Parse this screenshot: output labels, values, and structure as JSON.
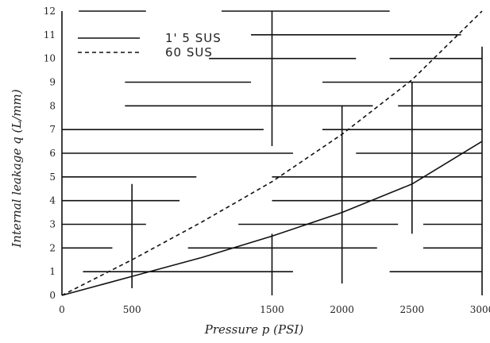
{
  "chart_data": {
    "type": "line",
    "title": "",
    "xlabel": "Pressure p (PSI)",
    "ylabel": "Internal leakage q (L/mm)",
    "xlim": [
      0,
      3000
    ],
    "ylim": [
      0,
      12
    ],
    "x_ticks": [
      0,
      500,
      1500,
      2000,
      2500,
      3000
    ],
    "x_tick_labels": [
      "0",
      "500",
      "1500",
      "2000",
      "2500",
      "3000"
    ],
    "y_ticks": [
      0,
      1,
      2,
      3,
      4,
      5,
      6,
      7,
      8,
      9,
      10,
      11,
      12
    ],
    "y_tick_labels": [
      "0",
      "1",
      "2",
      "3",
      "4",
      "5",
      "6",
      "7",
      "8",
      "9",
      "10",
      "11",
      "12"
    ],
    "grid": true,
    "legend_position": "top-left",
    "series": [
      {
        "name": "1' 5 SUS",
        "style": "solid",
        "x": [
          0,
          500,
          1000,
          1500,
          2000,
          2500,
          3000
        ],
        "y": [
          0,
          0.8,
          1.6,
          2.5,
          3.5,
          4.7,
          6.5
        ]
      },
      {
        "name": "60 SUS",
        "style": "dashed",
        "x": [
          0,
          500,
          1000,
          1500,
          2000,
          2500,
          3000
        ],
        "y": [
          0,
          1.5,
          3.1,
          4.8,
          6.8,
          9.1,
          12
        ]
      }
    ]
  }
}
